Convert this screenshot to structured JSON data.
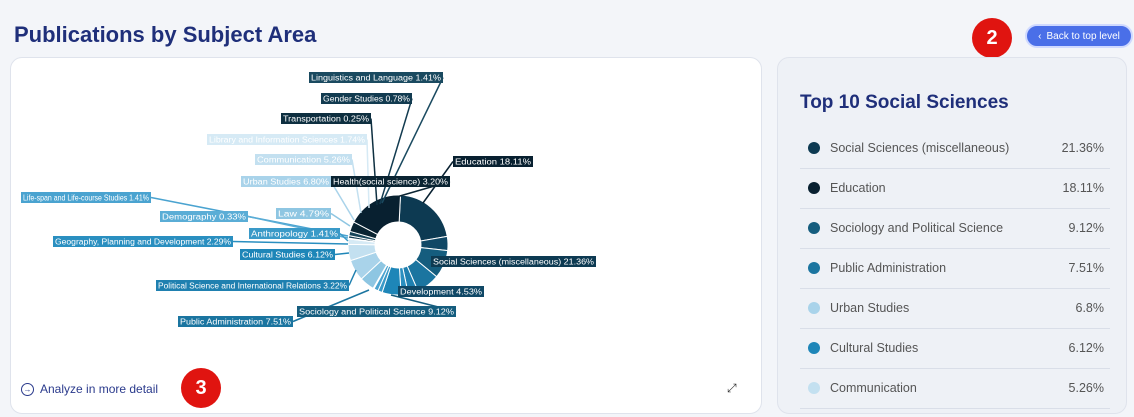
{
  "header": {
    "title": "Publications by Subject Area",
    "back_label": "Back to top level",
    "back_icon": "chevron-left-icon"
  },
  "annotations": {
    "badge_2": "2",
    "badge_3": "3"
  },
  "chart_panel": {
    "analyze_label": "Analyze in more detail",
    "expand_icon": "expand-icon"
  },
  "chart_data": {
    "type": "pie",
    "donut": true,
    "slices": [
      {
        "label": "Social Sciences (miscellaneous)",
        "value": 21.36,
        "color": "#0d3a52"
      },
      {
        "label": "Development",
        "value": 4.53,
        "color": "#104866"
      },
      {
        "label": "Sociology and Political Science",
        "value": 9.12,
        "color": "#155d7e"
      },
      {
        "label": "Public Administration",
        "value": 7.51,
        "color": "#1b75a0"
      },
      {
        "label": "Political Science and International Relations",
        "value": 3.22,
        "color": "#1f80b0"
      },
      {
        "label": "Geography, Planning and Development",
        "value": 2.29,
        "color": "#2a8fc0"
      },
      {
        "label": "Cultural Studies",
        "value": 6.12,
        "color": "#1e86b8"
      },
      {
        "label": "Anthropology",
        "value": 1.41,
        "color": "#3a9ac8"
      },
      {
        "label": "Life-span and Life-course Studies",
        "value": 1.41,
        "color": "#4aa3d0"
      },
      {
        "label": "Demography",
        "value": 0.33,
        "color": "#5aadd6"
      },
      {
        "label": "Law",
        "value": 4.79,
        "color": "#8ec6e2"
      },
      {
        "label": "Urban Studies",
        "value": 6.8,
        "color": "#a9d3ea"
      },
      {
        "label": "Communication",
        "value": 5.26,
        "color": "#c3e0f0"
      },
      {
        "label": "Library and Information Sciences",
        "value": 1.74,
        "color": "#d6eaf5"
      },
      {
        "label": "Transportation",
        "value": 0.25,
        "color": "#0e2f40"
      },
      {
        "label": "Gender Studies",
        "value": 0.78,
        "color": "#123b50"
      },
      {
        "label": "Linguistics and Language",
        "value": 1.41,
        "color": "#174559"
      },
      {
        "label": "Health(social science)",
        "value": 3.2,
        "color": "#0a2432"
      },
      {
        "label": "Education",
        "value": 18.11,
        "color": "#082030"
      }
    ],
    "labels": [
      "Linguistics and Language 1.41%",
      "Gender Studies 0.78%",
      "Transportation 0.25%",
      "Library and Information Sciences 1.74%",
      "Communication 5.26%",
      "Urban Studies 6.80%",
      "Health(social science) 3.20%",
      "Education 18.11%",
      "Life-span and Life-course Studies 1.41%",
      "Demography 0.33%",
      "Law 4.79%",
      "Anthropology 1.41%",
      "Geography, Planning and Development 2.29%",
      "Cultural Studies 6.12%",
      "Social Sciences (miscellaneous) 21.36%",
      "Political Science and International Relations 3.22%",
      "Development 4.53%",
      "Sociology and Political Science 9.12%",
      "Public Administration 7.51%"
    ]
  },
  "top10": {
    "title": "Top 10 Social Sciences",
    "rows": [
      {
        "label": "Social Sciences (miscellaneous)",
        "value": "21.36%",
        "color": "#0d3a52"
      },
      {
        "label": "Education",
        "value": "18.11%",
        "color": "#082030"
      },
      {
        "label": "Sociology and Political Science",
        "value": "9.12%",
        "color": "#155d7e"
      },
      {
        "label": "Public Administration",
        "value": "7.51%",
        "color": "#1b75a0"
      },
      {
        "label": "Urban Studies",
        "value": "6.8%",
        "color": "#a9d3ea"
      },
      {
        "label": "Cultural Studies",
        "value": "6.12%",
        "color": "#1e86b8"
      },
      {
        "label": "Communication",
        "value": "5.26%",
        "color": "#c3e0f0"
      }
    ]
  }
}
